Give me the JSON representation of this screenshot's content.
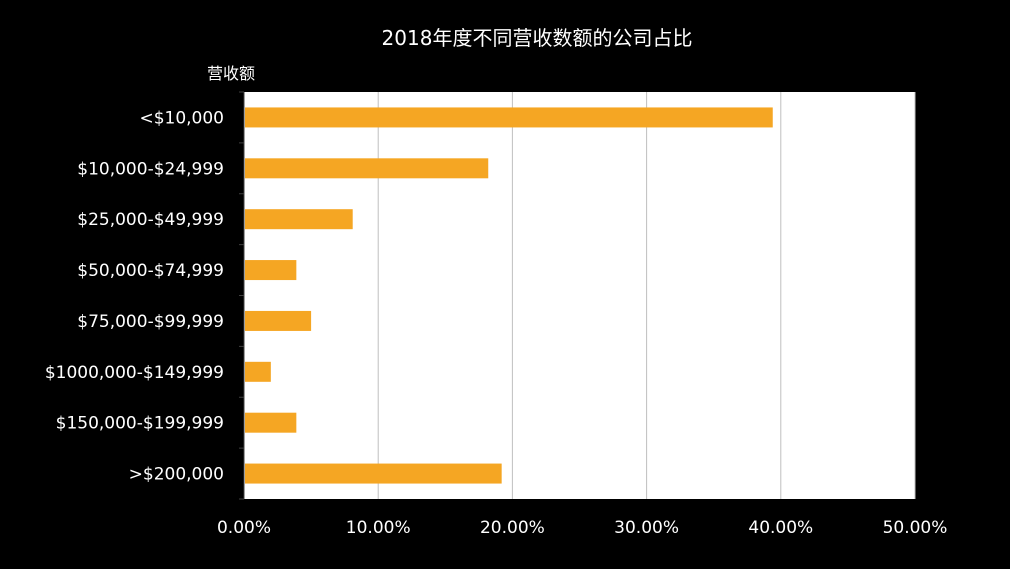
{
  "chart_data": {
    "type": "bar",
    "orientation": "horizontal",
    "title": "2018年度不同营收数额的公司占比",
    "ylabel": "营收额",
    "xlabel": "",
    "categories": [
      "<$10,000",
      "$10,000-$24,999",
      "$25,000-$49,999",
      "$50,000-$74,999",
      "$75,000-$99,999",
      "$1000,000-$149,999",
      "$150,000-$199,999",
      ">$200,000"
    ],
    "values": [
      39.4,
      18.2,
      8.1,
      3.9,
      5.0,
      2.0,
      3.9,
      19.2
    ],
    "xlim": [
      0,
      50
    ],
    "x_ticks": [
      "0.00%",
      "10.00%",
      "20.00%",
      "30.00%",
      "40.00%",
      "50.00%"
    ],
    "grid": "vertical",
    "legend": "none",
    "colors": {
      "background": "#000000",
      "plot_area": "#ffffff",
      "bar": "#f5a623",
      "text": "#ffffff",
      "grid": "#bfbfbf"
    }
  }
}
